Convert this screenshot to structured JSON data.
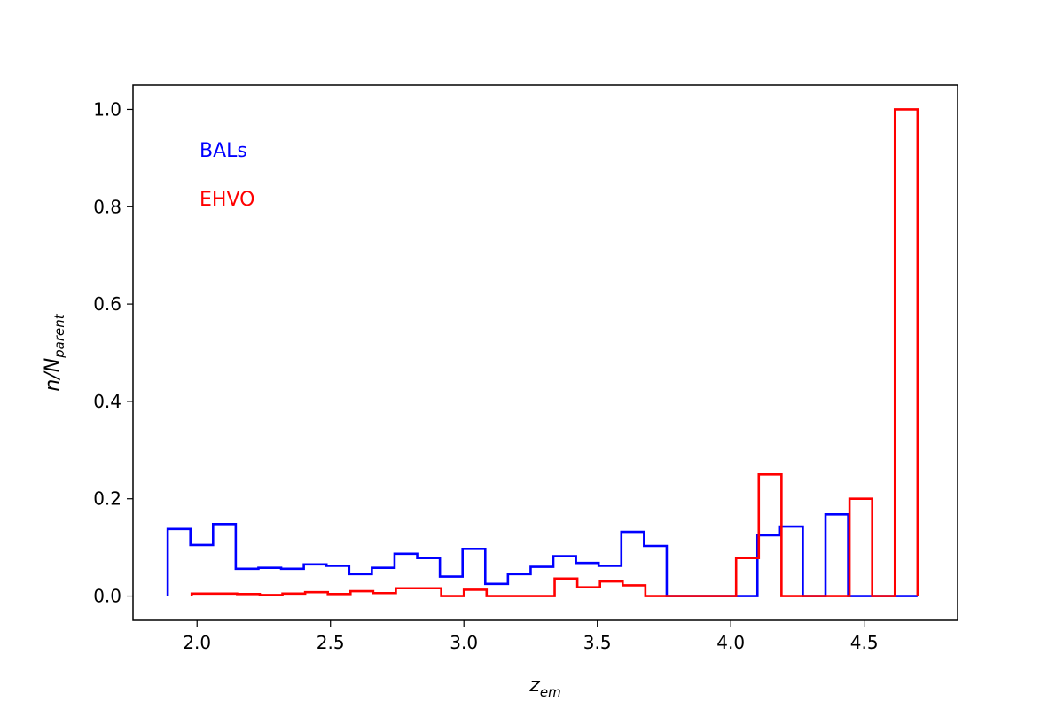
{
  "chart_data": {
    "type": "histogram-step",
    "title": "",
    "xlabel": {
      "main": "z",
      "sub": "em"
    },
    "ylabel": {
      "main": "n/N",
      "sub": "parent"
    },
    "xlim": [
      1.76,
      4.85
    ],
    "ylim": [
      -0.05,
      1.05
    ],
    "xticks": [
      {
        "value": 2.0,
        "label": "2.0"
      },
      {
        "value": 2.5,
        "label": "2.5"
      },
      {
        "value": 3.0,
        "label": "3.0"
      },
      {
        "value": 3.5,
        "label": "3.5"
      },
      {
        "value": 4.0,
        "label": "4.0"
      },
      {
        "value": 4.5,
        "label": "4.5"
      }
    ],
    "yticks": [
      {
        "value": 0.0,
        "label": "0.0"
      },
      {
        "value": 0.2,
        "label": "0.2"
      },
      {
        "value": 0.4,
        "label": "0.4"
      },
      {
        "value": 0.6,
        "label": "0.6"
      },
      {
        "value": 0.8,
        "label": "0.8"
      },
      {
        "value": 1.0,
        "label": "1.0"
      }
    ],
    "grid": false,
    "series": [
      {
        "name": "BALs",
        "color": "#0000ff",
        "edges": [
          1.89,
          1.975,
          2.06,
          2.145,
          2.23,
          2.315,
          2.4,
          2.485,
          2.57,
          2.655,
          2.74,
          2.825,
          2.91,
          2.995,
          3.08,
          3.165,
          3.25,
          3.335,
          3.42,
          3.505,
          3.59,
          3.675,
          3.76,
          3.845,
          3.93,
          4.015,
          4.1,
          4.185,
          4.27,
          4.355,
          4.44,
          4.525,
          4.61,
          4.7
        ],
        "values": [
          0.138,
          0.105,
          0.148,
          0.056,
          0.058,
          0.056,
          0.065,
          0.062,
          0.045,
          0.058,
          0.087,
          0.078,
          0.04,
          0.097,
          0.025,
          0.045,
          0.06,
          0.082,
          0.068,
          0.062,
          0.132,
          0.103,
          0.0,
          0.0,
          0.0,
          0.0,
          0.125,
          0.143,
          0.0,
          0.168,
          0.0,
          0.0,
          0.0
        ]
      },
      {
        "name": "EHVO",
        "color": "#ff0000",
        "edges": [
          1.98,
          2.065,
          2.15,
          2.235,
          2.32,
          2.405,
          2.49,
          2.575,
          2.66,
          2.745,
          2.83,
          2.915,
          3.0,
          3.085,
          3.17,
          3.255,
          3.34,
          3.425,
          3.51,
          3.595,
          3.68,
          3.765,
          3.85,
          3.935,
          4.02,
          4.105,
          4.19,
          4.275,
          4.36,
          4.445,
          4.53,
          4.615,
          4.7
        ],
        "values": [
          0.005,
          0.005,
          0.004,
          0.002,
          0.005,
          0.008,
          0.004,
          0.01,
          0.006,
          0.016,
          0.016,
          0.0,
          0.013,
          0.0,
          0.0,
          0.0,
          0.036,
          0.018,
          0.03,
          0.022,
          0.0,
          0.0,
          0.0,
          0.0,
          0.078,
          0.25,
          0.0,
          0.0,
          0.0,
          0.2,
          0.0,
          1.0
        ]
      }
    ]
  }
}
